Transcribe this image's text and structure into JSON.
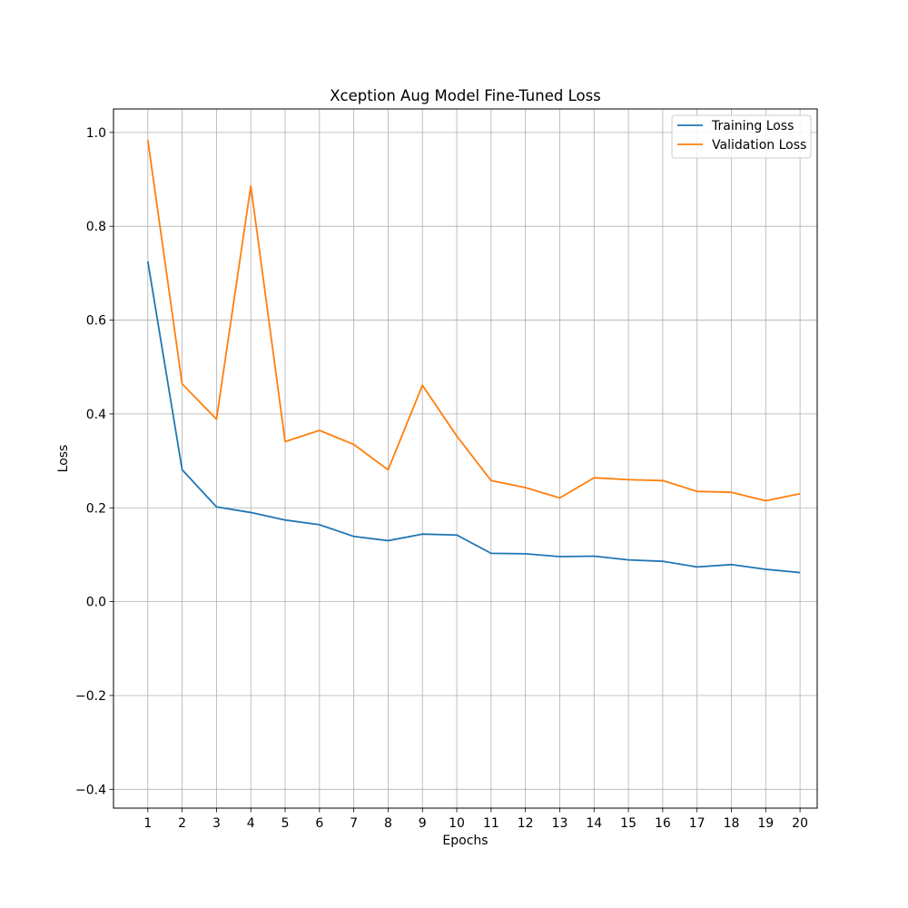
{
  "chart_data": {
    "type": "line",
    "title": "Xception Aug Model Fine-Tuned Loss",
    "xlabel": "Epochs",
    "ylabel": "Loss",
    "x": [
      1,
      2,
      3,
      4,
      5,
      6,
      7,
      8,
      9,
      10,
      11,
      12,
      13,
      14,
      15,
      16,
      17,
      18,
      19,
      20
    ],
    "xlim": [
      0.0,
      20.5
    ],
    "ylim": [
      -0.44,
      1.05
    ],
    "yticks": [
      -0.4,
      -0.2,
      0.0,
      0.2,
      0.4,
      0.6,
      0.8,
      1.0
    ],
    "ytick_labels": [
      "−0.4",
      "−0.2",
      "0.0",
      "0.2",
      "0.4",
      "0.6",
      "0.8",
      "1.0"
    ],
    "grid": true,
    "legend_position": "top-right",
    "series": [
      {
        "name": "Training Loss",
        "color": "#1f77b4",
        "values": [
          0.725,
          0.281,
          0.202,
          0.19,
          0.174,
          0.164,
          0.139,
          0.13,
          0.144,
          0.142,
          0.103,
          0.102,
          0.096,
          0.097,
          0.089,
          0.086,
          0.074,
          0.079,
          0.069,
          0.062
        ]
      },
      {
        "name": "Validation Loss",
        "color": "#ff7f0e",
        "values": [
          0.984,
          0.464,
          0.389,
          0.886,
          0.341,
          0.365,
          0.335,
          0.281,
          0.461,
          0.353,
          0.258,
          0.243,
          0.221,
          0.264,
          0.26,
          0.258,
          0.235,
          0.233,
          0.215,
          0.23
        ]
      }
    ]
  }
}
